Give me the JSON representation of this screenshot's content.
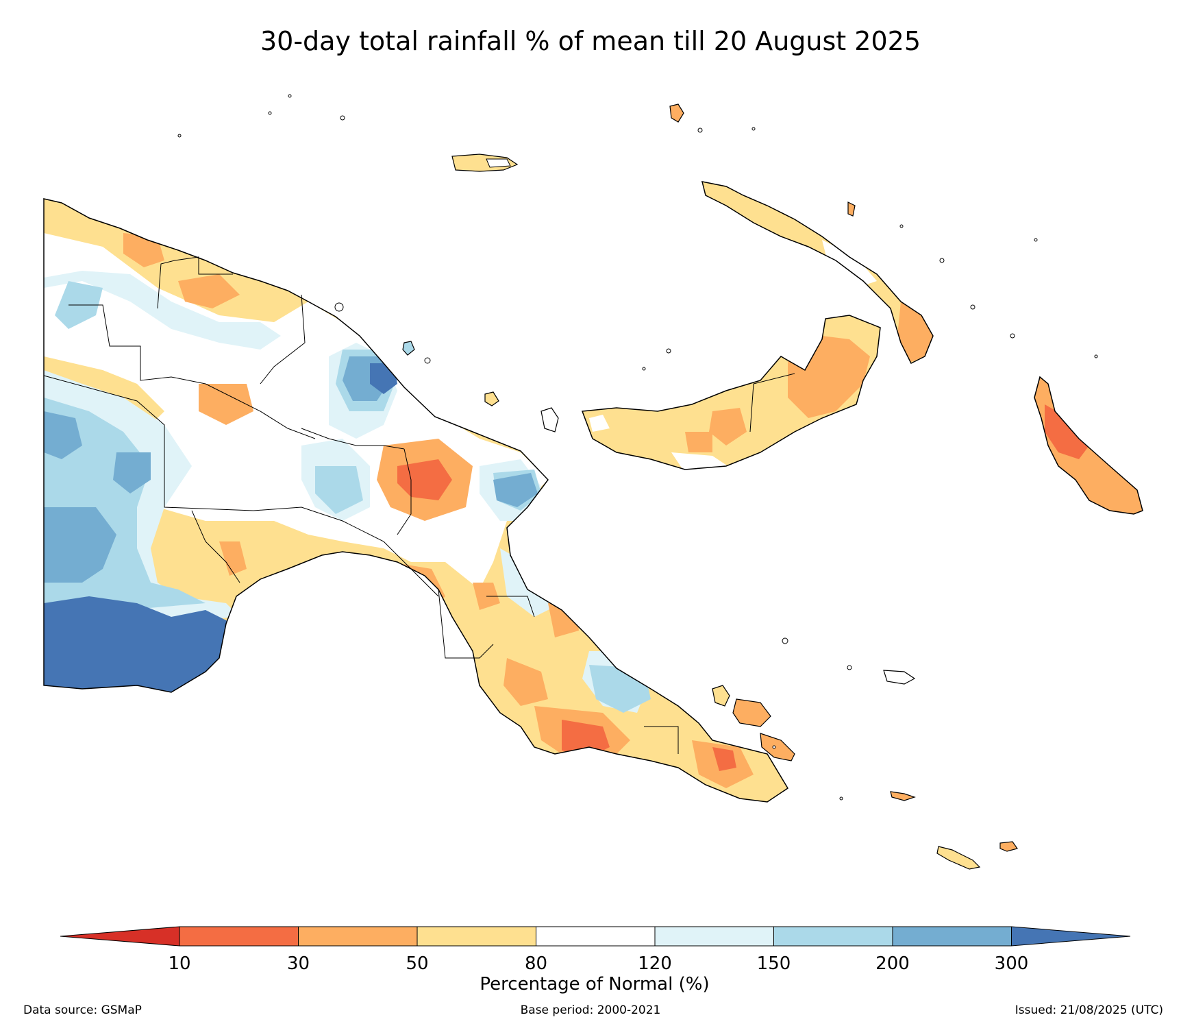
{
  "title": "30-day total rainfall % of mean till 20 August 2025",
  "colorbar": {
    "label": "Percentage of Normal (%)",
    "ticks": [
      "10",
      "30",
      "50",
      "80",
      "120",
      "150",
      "200",
      "300"
    ],
    "colors": [
      "#d73027",
      "#f46d43",
      "#fdae61",
      "#fee090",
      "#ffffff",
      "#e0f3f8",
      "#abd9e9",
      "#74add1",
      "#4575b4"
    ]
  },
  "footer": {
    "data_source": "Data source: GSMaP",
    "base_period": "Base period: 2000-2021",
    "issued": "Issued: 21/08/2025 (UTC)"
  },
  "palette": {
    "lt10": "#d73027",
    "p10_30": "#f46d43",
    "p30_50": "#fdae61",
    "p50_80": "#fee090",
    "p80_120": "#ffffff",
    "p120_150": "#e0f3f8",
    "p150_200": "#abd9e9",
    "p200_300": "#74add1",
    "gt300": "#4575b4"
  }
}
